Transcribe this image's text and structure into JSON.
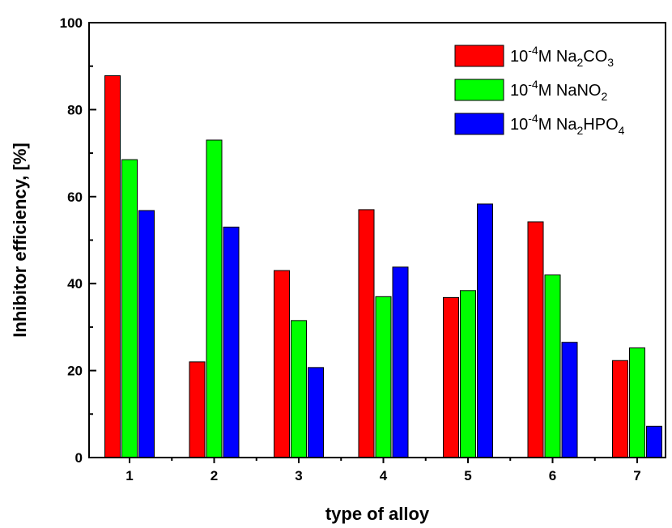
{
  "chart_data": {
    "type": "bar",
    "title": "",
    "xlabel": "type of alloy",
    "ylabel": "Inhibitor efficiency, [%]",
    "ylim": [
      0,
      100
    ],
    "yticks": [
      "0",
      "20",
      "40",
      "60",
      "80",
      "100"
    ],
    "categories": [
      "1",
      "2",
      "3",
      "4",
      "5",
      "6",
      "7"
    ],
    "legend_placement": "top-right",
    "grid": false,
    "series": [
      {
        "name": "10-4M Na2CO3",
        "legend": {
          "a": "10",
          "sup": "-4",
          "b": "M Na",
          "sub1": "2",
          "c": "CO",
          "sub2": "3",
          "d": ""
        },
        "color": "#ff0000",
        "values": [
          87.8,
          22.0,
          43.0,
          57.0,
          36.8,
          54.2,
          22.3
        ]
      },
      {
        "name": "10-4M NaNO2",
        "legend": {
          "a": "10",
          "sup": "-4",
          "b": "M NaNO",
          "sub1": "2",
          "c": "",
          "sub2": "",
          "d": ""
        },
        "color": "#00ff00",
        "values": [
          68.5,
          73.0,
          31.5,
          37.0,
          38.4,
          42.0,
          25.2
        ]
      },
      {
        "name": "10-4M Na2HPO4",
        "legend": {
          "a": "10",
          "sup": "-4",
          "b": "M Na",
          "sub1": "2",
          "c": "HPO",
          "sub2": "4",
          "d": ""
        },
        "color": "#0000ff",
        "values": [
          56.8,
          53.0,
          20.7,
          43.8,
          58.3,
          26.5,
          7.2
        ]
      }
    ]
  }
}
